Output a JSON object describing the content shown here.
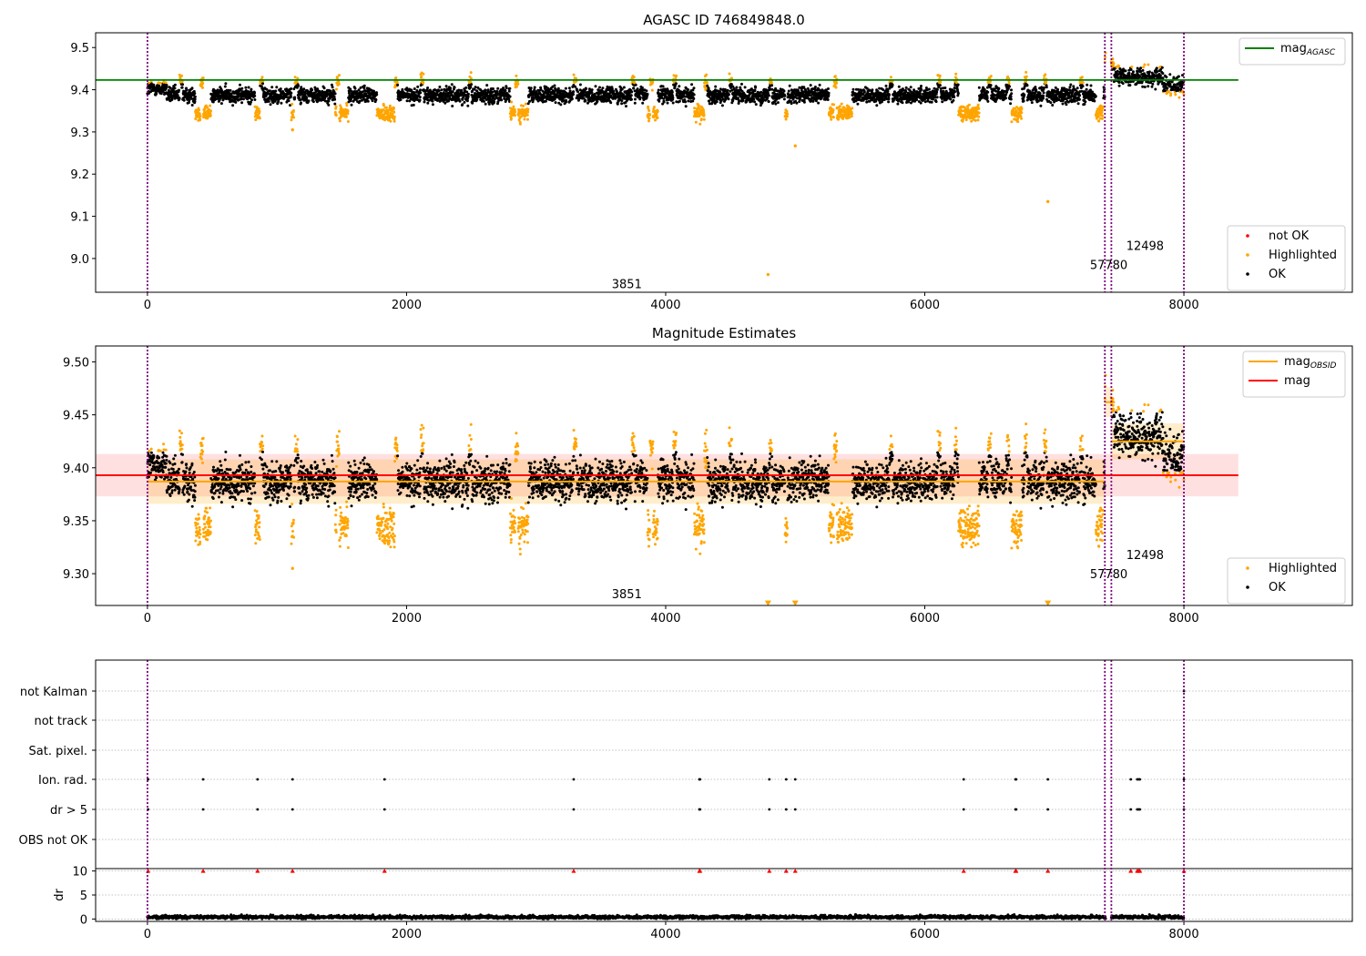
{
  "colors": {
    "ok": "#000000",
    "highlighted": "#ffa500",
    "not_ok": "#ff0000",
    "mag_agasc_line": "#008000",
    "mag_obsid_line": "#ffa500",
    "mag_line": "#ff0000",
    "obsid_boundary": "#800080",
    "grid": "#b0b0b0"
  },
  "chart_data": [
    {
      "type": "scatter",
      "title": "AGASC ID 746849848.0",
      "xlim": [
        -400,
        9300
      ],
      "ylim": [
        8.92,
        9.535
      ],
      "x_ticks": [
        0,
        2000,
        4000,
        6000,
        8000
      ],
      "y_ticks": [
        9.0,
        9.1,
        9.2,
        9.3,
        9.4,
        9.5
      ],
      "y_tick_labels": [
        "9.0",
        "9.1",
        "9.2",
        "9.3",
        "9.4",
        "9.5"
      ],
      "grid": false,
      "reference_lines": [
        {
          "label": "mag",
          "label_sub": "AGASC",
          "y": 9.423,
          "x_range": [
            -400,
            8420
          ],
          "color": "#008000"
        }
      ],
      "obsid_boundaries": [
        0,
        7390,
        7440,
        8000
      ],
      "obsid_labels": [
        {
          "text": "3851",
          "x": 3700,
          "y": 8.93
        },
        {
          "text": "57780",
          "x": 7420,
          "y": 8.975
        },
        {
          "text": "12498",
          "x": 7700,
          "y": 9.02
        }
      ],
      "outliers_highlighted": [
        {
          "x": 1120,
          "y": 9.305
        },
        {
          "x": 4790,
          "y": 8.962
        },
        {
          "x": 5000,
          "y": 9.267
        },
        {
          "x": 6950,
          "y": 9.135
        }
      ],
      "legends": [
        {
          "position": "upper-right",
          "items": [
            {
              "label": "mag",
              "sub": "AGASC",
              "kind": "line",
              "color": "#008000"
            }
          ]
        },
        {
          "position": "lower-right",
          "items": [
            {
              "label": "not OK",
              "kind": "point",
              "color": "#ff0000"
            },
            {
              "label": "Highlighted",
              "kind": "point",
              "color": "#ffa500"
            },
            {
              "label": "OK",
              "kind": "point",
              "color": "#000000"
            }
          ]
        }
      ]
    },
    {
      "type": "scatter",
      "title": "Magnitude Estimates",
      "xlim": [
        -400,
        9300
      ],
      "ylim": [
        9.27,
        9.515
      ],
      "x_ticks": [
        0,
        2000,
        4000,
        6000,
        8000
      ],
      "y_ticks": [
        9.3,
        9.35,
        9.4,
        9.45,
        9.5
      ],
      "y_tick_labels": [
        "9.30",
        "9.35",
        "9.40",
        "9.45",
        "9.50"
      ],
      "grid": false,
      "mag": {
        "label": "mag",
        "y": 9.393,
        "band": [
          9.373,
          9.413
        ],
        "x_range": [
          -400,
          8420
        ],
        "color": "#ff0000"
      },
      "mag_obsid": [
        {
          "x_range": [
            0,
            7390
          ],
          "y": 9.387,
          "band": [
            9.366,
            9.408
          ]
        },
        {
          "x_range": [
            7390,
            7440
          ],
          "y": 9.462,
          "band": [
            9.448,
            9.476
          ]
        },
        {
          "x_range": [
            7440,
            8000
          ],
          "y": 9.425,
          "band": [
            9.408,
            9.442
          ]
        }
      ],
      "mag_obsid_label": "mag",
      "mag_obsid_sub": "OBSID",
      "obsid_boundaries": [
        0,
        7390,
        7440,
        8000
      ],
      "obsid_labels": [
        {
          "text": "3851",
          "x": 3700,
          "y": 9.277
        },
        {
          "text": "57780",
          "x": 7420,
          "y": 9.296
        },
        {
          "text": "12498",
          "x": 7700,
          "y": 9.314
        }
      ],
      "outliers_highlighted": [
        {
          "x": 1120,
          "y": 9.305
        },
        {
          "x": 4790,
          "y": 9.272,
          "marker": "triangle"
        },
        {
          "x": 5000,
          "y": 9.272,
          "marker": "triangle"
        },
        {
          "x": 6950,
          "y": 9.272,
          "marker": "triangle"
        }
      ],
      "legends": [
        {
          "position": "upper-right",
          "items": [
            {
              "label": "mag",
              "sub": "OBSID",
              "kind": "line",
              "color": "#ffa500"
            },
            {
              "label": "mag",
              "kind": "line",
              "color": "#ff0000"
            }
          ]
        },
        {
          "position": "lower-right",
          "items": [
            {
              "label": "Highlighted",
              "kind": "point",
              "color": "#ffa500"
            },
            {
              "label": "OK",
              "kind": "point",
              "color": "#000000"
            }
          ]
        }
      ]
    },
    {
      "type": "scatter",
      "title": "",
      "xlim": [
        -400,
        9300
      ],
      "x_ticks": [
        0,
        2000,
        4000,
        6000,
        8000
      ],
      "flag_rows": [
        "not Kalman",
        "not track",
        "Sat. pixel.",
        "Ion. rad.",
        "dr > 5",
        "OBS not OK"
      ],
      "flag_events": {
        "Ion. rad.": [
          5,
          430,
          850,
          1120,
          1830,
          3290,
          4260,
          4265,
          4800,
          4930,
          5000,
          6300,
          6700,
          6705,
          6950,
          7590,
          7640,
          7650,
          7660,
          8000
        ],
        "dr > 5": [
          5,
          430,
          850,
          1120,
          1830,
          3290,
          4260,
          4265,
          4800,
          4930,
          5000,
          6300,
          6700,
          6705,
          6950,
          7590,
          7640,
          7650,
          7660,
          8000
        ],
        "not Kalman": [
          8000
        ]
      },
      "obsid_boundaries": [
        0,
        7390,
        7440,
        8000
      ],
      "dr_panel": {
        "ylabel": "dr",
        "ylim": [
          -0.5,
          10.5
        ],
        "y_ticks": [
          0,
          5,
          10
        ],
        "y_tick_labels": [
          "0",
          "5",
          "10"
        ],
        "typical_dr": 0.4,
        "clipped_value": 10,
        "clipped_x": [
          5,
          430,
          850,
          1120,
          1830,
          3290,
          4260,
          4265,
          4800,
          4930,
          5000,
          6300,
          6700,
          6705,
          6950,
          7590,
          7640,
          7650,
          7660,
          8000
        ],
        "x_tick_labels": [
          "0",
          "2000",
          "4000",
          "6000",
          "8000"
        ]
      }
    }
  ]
}
